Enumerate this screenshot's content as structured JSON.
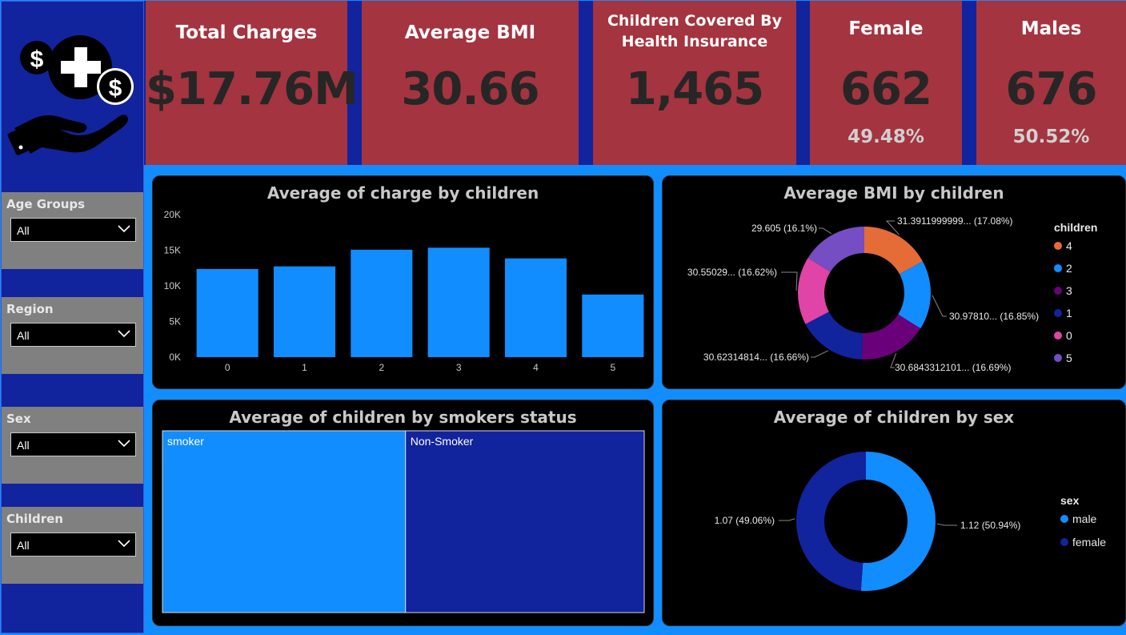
{
  "sidebar": {
    "slicers": [
      {
        "label": "Age Groups",
        "value": "All"
      },
      {
        "label": "Region",
        "value": "All"
      },
      {
        "label": "Sex",
        "value": "All"
      },
      {
        "label": "Children",
        "value": "All"
      }
    ]
  },
  "kpis": {
    "total_charges": {
      "title": "Total Charges",
      "value": "$17.76M"
    },
    "average_bmi": {
      "title": "Average BMI",
      "value": "30.66"
    },
    "children_covered": {
      "title_line1": "Children Covered By",
      "title_line2": "Health Insurance",
      "value": "1,465"
    },
    "female": {
      "title": "Female",
      "value": "662",
      "pct": "49.48%"
    },
    "males": {
      "title": "Males",
      "value": "676",
      "pct": "50.52%"
    }
  },
  "colors": {
    "accent": "#118dff",
    "navy": "#12239e",
    "card": "#a4343f"
  },
  "chart_data": [
    {
      "type": "bar",
      "title": "Average of charge by children",
      "categories": [
        "0",
        "1",
        "2",
        "3",
        "4",
        "5"
      ],
      "values": [
        12366,
        12731,
        15074,
        15355,
        13851,
        8786
      ],
      "yticks": [
        "0K",
        "5K",
        "10K",
        "15K",
        "20K"
      ],
      "ylim": [
        0,
        20000
      ],
      "color": "#118dff"
    },
    {
      "type": "pie",
      "title": "Average BMI by children",
      "legend_title": "children",
      "slices": [
        {
          "name": "4",
          "value": 31.3912,
          "label": "31.3911999999... (17.08%)",
          "color": "#e66c37"
        },
        {
          "name": "2",
          "value": 30.9781,
          "label": "30.97810... (16.85%)",
          "color": "#118dff"
        },
        {
          "name": "3",
          "value": 30.6843,
          "label": "30.6843312101... (16.69%)",
          "color": "#6b007b"
        },
        {
          "name": "1",
          "value": 30.6231,
          "label": "30.62314814... (16.66%)",
          "color": "#12239e"
        },
        {
          "name": "0",
          "value": 30.5503,
          "label": "30.55029... (16.62%)",
          "color": "#e044a7"
        },
        {
          "name": "5",
          "value": 29.605,
          "label": "29.605 (16.1%)",
          "color": "#744ec2"
        }
      ]
    },
    {
      "type": "treemap",
      "title": "Average of children by smokers status",
      "items": [
        {
          "name": "smoker",
          "value": 1.11,
          "color": "#118dff"
        },
        {
          "name": "Non-Smoker",
          "value": 1.09,
          "color": "#12239e"
        }
      ]
    },
    {
      "type": "pie",
      "title": "Average of children by sex",
      "legend_title": "sex",
      "slices": [
        {
          "name": "male",
          "value": 1.12,
          "label": "1.12 (50.94%)",
          "color": "#118dff"
        },
        {
          "name": "female",
          "value": 1.07,
          "label": "1.07 (49.06%)",
          "color": "#12239e"
        }
      ]
    }
  ]
}
